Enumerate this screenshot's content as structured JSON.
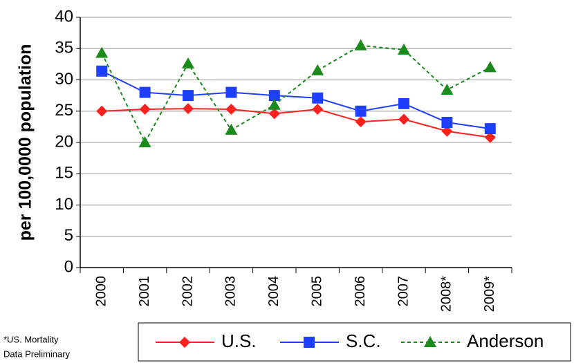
{
  "chart_data": {
    "type": "line",
    "y_label": "per 100,0000 population",
    "categories": [
      "2000",
      "2001",
      "2002",
      "2003",
      "2004",
      "2005",
      "2006",
      "2007",
      "2008*",
      "2009*"
    ],
    "series": [
      {
        "name": "U.S.",
        "color": "#ff2020",
        "marker": "diamond",
        "linestyle": "solid",
        "values": [
          25,
          25.3,
          25.4,
          25.3,
          24.6,
          25.3,
          23.3,
          23.7,
          21.8,
          20.8
        ]
      },
      {
        "name": "S.C.",
        "color": "#1f3fff",
        "marker": "square",
        "linestyle": "solid",
        "values": [
          31.4,
          28,
          27.5,
          28,
          27.5,
          27.1,
          25,
          26.2,
          23.2,
          22.2
        ]
      },
      {
        "name": "Anderson",
        "color": "#1a8a1a",
        "marker": "triangle",
        "linestyle": "dashed",
        "values": [
          34.3,
          20,
          32.6,
          22,
          26,
          31.5,
          35.5,
          34.8,
          28.4,
          32
        ]
      }
    ],
    "ylim": [
      0,
      40
    ],
    "yticks": [
      0,
      5,
      10,
      15,
      20,
      25,
      30,
      35,
      40
    ],
    "grid": true,
    "legend": "bottom",
    "note": [
      "*US. Mortality",
      "Data Preliminary"
    ]
  }
}
